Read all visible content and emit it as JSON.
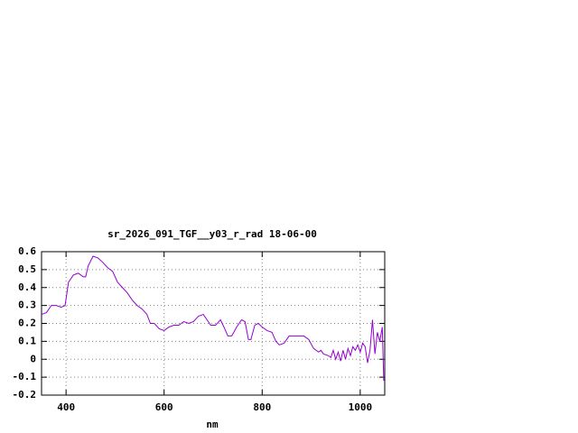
{
  "chart_data": {
    "type": "line",
    "title": "sr_2026_091_TGF__y03_r_rad 18-06-00",
    "x_label": "nm",
    "x": [
      350,
      360,
      370,
      380,
      390,
      398,
      405,
      415,
      425,
      435,
      440,
      445,
      455,
      465,
      475,
      485,
      495,
      505,
      515,
      525,
      535,
      545,
      555,
      565,
      572,
      580,
      590,
      600,
      610,
      620,
      630,
      640,
      650,
      660,
      670,
      680,
      690,
      695,
      705,
      715,
      722,
      730,
      738,
      748,
      758,
      765,
      772,
      777,
      785,
      792,
      800,
      810,
      820,
      828,
      835,
      845,
      855,
      865,
      875,
      885,
      895,
      905,
      915,
      920,
      925,
      935,
      940,
      945,
      950,
      955,
      960,
      965,
      970,
      975,
      980,
      985,
      990,
      995,
      1000,
      1005,
      1010,
      1015,
      1020,
      1025,
      1030,
      1035,
      1040,
      1045,
      1048
    ],
    "series": [
      {
        "name": "rad",
        "color": "#9400d3",
        "values": [
          0.25,
          0.26,
          0.3,
          0.3,
          0.29,
          0.3,
          0.43,
          0.47,
          0.48,
          0.46,
          0.46,
          0.52,
          0.575,
          0.565,
          0.54,
          0.51,
          0.49,
          0.43,
          0.4,
          0.37,
          0.33,
          0.3,
          0.28,
          0.25,
          0.2,
          0.2,
          0.17,
          0.16,
          0.18,
          0.19,
          0.19,
          0.21,
          0.2,
          0.21,
          0.24,
          0.25,
          0.21,
          0.19,
          0.19,
          0.22,
          0.18,
          0.13,
          0.13,
          0.18,
          0.22,
          0.21,
          0.11,
          0.11,
          0.19,
          0.2,
          0.18,
          0.16,
          0.15,
          0.1,
          0.08,
          0.09,
          0.13,
          0.13,
          0.13,
          0.13,
          0.11,
          0.06,
          0.04,
          0.05,
          0.03,
          0.02,
          0.01,
          0.05,
          0.0,
          0.04,
          -0.01,
          0.05,
          0.0,
          0.06,
          0.02,
          0.07,
          0.05,
          0.08,
          0.04,
          0.09,
          0.07,
          -0.02,
          0.05,
          0.22,
          0.03,
          0.15,
          0.1,
          0.18,
          -0.12
        ]
      }
    ],
    "xlim": [
      350,
      1050
    ],
    "xticks": [
      400,
      600,
      800,
      1000
    ],
    "ylim": [
      -0.2,
      0.6
    ],
    "yticks": [
      0.6,
      0.5,
      0.4,
      0.3,
      0.2,
      0.1,
      0,
      -0.1,
      -0.2
    ],
    "grid": true
  }
}
